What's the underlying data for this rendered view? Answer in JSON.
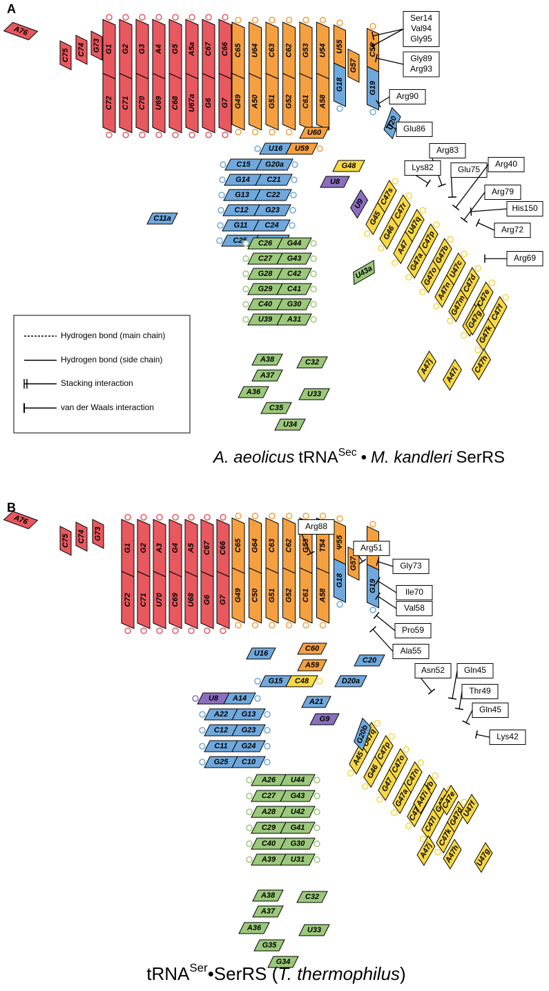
{
  "panels": [
    {
      "label": "A",
      "stems": [
        {
          "pairs": [
            [
              "C72",
              "G1"
            ],
            [
              "C71",
              "G2"
            ],
            [
              "C70",
              "G3"
            ],
            [
              "U69",
              "A4"
            ],
            [
              "C68",
              "G5"
            ],
            [
              "U67a",
              "A5a"
            ],
            [
              "G6",
              "C67"
            ],
            [
              "G7",
              "C66"
            ]
          ],
          "colors": [
            "#e8585f",
            "#e8585f"
          ]
        },
        {
          "pairs": [
            [
              "G49",
              "C65"
            ],
            [
              "A50",
              "U64"
            ],
            [
              "G51",
              "C63"
            ],
            [
              "G52",
              "C62"
            ],
            [
              "C61",
              "G53"
            ],
            [
              "A58",
              "U54"
            ]
          ],
          "colors": [
            "#f5a040",
            "#f5a040"
          ]
        },
        {
          "pairs": [
            [
              "G18",
              "U55"
            ]
          ],
          "colors": [
            "#6fa8dc",
            "#f5a040"
          ]
        },
        {
          "pairs": [
            [
              "G19",
              "C56"
            ]
          ],
          "colors": [
            "#6fa8dc",
            "#f5a040"
          ]
        },
        {
          "pairs": [
            [
              "U16",
              "U59"
            ]
          ],
          "colors": [
            "#6fa8dc",
            "#f5a040"
          ]
        },
        {
          "pairs": [
            [
              "C15",
              "G20a"
            ],
            [
              "G14",
              "C21"
            ],
            [
              "G13",
              "C22"
            ],
            [
              "C12",
              "G23"
            ],
            [
              "G11",
              "C24"
            ],
            [
              "C25",
              "G10"
            ]
          ],
          "colors": [
            "#6fa8dc",
            "#6fa8dc"
          ]
        },
        {
          "pairs": [
            [
              "G45",
              "C47s"
            ],
            [
              "G46",
              "C47r"
            ],
            [
              "A47",
              "U47q"
            ],
            [
              "G47a",
              "C47p"
            ],
            [
              "G47o",
              "G47b"
            ],
            [
              "A47n",
              "U47c"
            ],
            [
              "G47m",
              "C47d"
            ],
            [
              "G47l",
              "C47e"
            ],
            [
              "G47k",
              "C47f"
            ]
          ],
          "colors": [
            "#f7d842",
            "#f7d842"
          ]
        },
        {
          "pairs": [
            [
              "C26",
              "G44"
            ],
            [
              "C27",
              "G43"
            ],
            [
              "G28",
              "C42"
            ],
            [
              "G29",
              "C41"
            ],
            [
              "C40",
              "G30"
            ],
            [
              "U39",
              "A31"
            ]
          ],
          "colors": [
            "#9bc87a",
            "#9bc87a"
          ]
        }
      ],
      "singles": [
        {
          "text": "A76",
          "color": "#e8585f"
        },
        {
          "text": "C75",
          "color": "#e8585f"
        },
        {
          "text": "C74",
          "color": "#e8585f"
        },
        {
          "text": "G73",
          "color": "#e8585f"
        },
        {
          "text": "G57",
          "color": "#f5a040"
        },
        {
          "text": "U20",
          "color": "#6fa8dc"
        },
        {
          "text": "U60",
          "color": "#f5a040"
        },
        {
          "text": "G48",
          "color": "#f7d842"
        },
        {
          "text": "U8",
          "color": "#8b6fbf"
        },
        {
          "text": "U9",
          "color": "#8b6fbf"
        },
        {
          "text": "C11a",
          "color": "#6fa8dc"
        },
        {
          "text": "U43a",
          "color": "#9bc87a"
        },
        {
          "text": "G47g",
          "color": "#f7d842"
        },
        {
          "text": "A47j",
          "color": "#f7d842"
        },
        {
          "text": "A47i",
          "color": "#f7d842"
        },
        {
          "text": "C47h",
          "color": "#f7d842"
        },
        {
          "text": "A38",
          "color": "#9bc87a"
        },
        {
          "text": "C32",
          "color": "#9bc87a"
        },
        {
          "text": "A37",
          "color": "#9bc87a"
        },
        {
          "text": "A36",
          "color": "#9bc87a"
        },
        {
          "text": "U33",
          "color": "#9bc87a"
        },
        {
          "text": "C35",
          "color": "#9bc87a"
        },
        {
          "text": "U34",
          "color": "#9bc87a"
        }
      ],
      "residues": [
        [
          "Ser14",
          "Val94",
          "Gly95"
        ],
        [
          "Gly89",
          "Arg93"
        ],
        [
          "Arg90"
        ],
        [
          "Glu86"
        ],
        [
          "Arg83"
        ],
        [
          "Lys82"
        ],
        [
          "Glu75"
        ],
        [
          "Arg40"
        ],
        [
          "Arg79"
        ],
        [
          "His150"
        ],
        [
          "Arg72"
        ],
        [
          "Arg69"
        ]
      ],
      "caption": [
        "A. aeolicus",
        "tRNA",
        "Sec",
        "•",
        "M. kandleri",
        "SerRS"
      ]
    },
    {
      "label": "B",
      "stems": [
        {
          "pairs": [
            [
              "C72",
              "G1"
            ],
            [
              "C71",
              "G2"
            ],
            [
              "U70",
              "A3"
            ],
            [
              "C69",
              "G4"
            ],
            [
              "U68",
              "A5"
            ],
            [
              "G6",
              "C67"
            ],
            [
              "G7",
              "C66"
            ]
          ],
          "colors": [
            "#e8585f",
            "#e8585f"
          ]
        },
        {
          "pairs": [
            [
              "G49",
              "C65"
            ],
            [
              "C50",
              "G64"
            ],
            [
              "G51",
              "C63"
            ],
            [
              "G52",
              "C62"
            ],
            [
              "C61",
              "G53"
            ],
            [
              "A58",
              "T54"
            ]
          ],
          "colors": [
            "#f5a040",
            "#f5a040"
          ]
        },
        {
          "pairs": [
            [
              "G18",
              "Ψ55"
            ]
          ],
          "colors": [
            "#6fa8dc",
            "#f5a040"
          ]
        },
        {
          "pairs": [
            [
              "G19",
              "C56"
            ]
          ],
          "colors": [
            "#6fa8dc",
            "#f5a040"
          ]
        },
        {
          "pairs": [
            [
              "G15",
              "C48"
            ]
          ],
          "colors": [
            "#6fa8dc",
            "#f7d842"
          ]
        },
        {
          "pairs": [
            [
              "U8",
              "A14"
            ]
          ],
          "colors": [
            "#8b6fbf",
            "#6fa8dc"
          ]
        },
        {
          "pairs": [
            [
              "A22",
              "G13"
            ],
            [
              "C12",
              "G23"
            ],
            [
              "C11",
              "G24"
            ],
            [
              "G25",
              "C10"
            ]
          ],
          "colors": [
            "#6fa8dc",
            "#6fa8dc"
          ]
        },
        {
          "pairs": [
            [
              "A45",
              "U47q"
            ],
            [
              "G46",
              "C47p"
            ],
            [
              "G47",
              "C47o"
            ],
            [
              "G47a",
              "C47n"
            ],
            [
              "C47m",
              "G47b"
            ],
            [
              "C47l",
              "G47c"
            ],
            [
              "C47k",
              "G47d"
            ]
          ],
          "colors": [
            "#f7d842",
            "#f7d842"
          ]
        },
        {
          "pairs": [
            [
              "A26",
              "U44"
            ],
            [
              "C27",
              "G43"
            ],
            [
              "A28",
              "U42"
            ],
            [
              "C29",
              "G41"
            ],
            [
              "C40",
              "G30"
            ],
            [
              "A39",
              "U31"
            ]
          ],
          "colors": [
            "#9bc87a",
            "#9bc87a"
          ]
        }
      ],
      "singles": [
        {
          "text": "A76",
          "color": "#e8585f"
        },
        {
          "text": "C75",
          "color": "#e8585f"
        },
        {
          "text": "C74",
          "color": "#e8585f"
        },
        {
          "text": "G73",
          "color": "#e8585f"
        },
        {
          "text": "G57",
          "color": "#f5a040"
        },
        {
          "text": "U16",
          "color": "#6fa8dc"
        },
        {
          "text": "C60",
          "color": "#f5a040"
        },
        {
          "text": "A59",
          "color": "#f5a040"
        },
        {
          "text": "D20a",
          "color": "#6fa8dc"
        },
        {
          "text": "C20",
          "color": "#6fa8dc"
        },
        {
          "text": "A21",
          "color": "#6fa8dc"
        },
        {
          "text": "G9",
          "color": "#8b6fbf"
        },
        {
          "text": "G20b",
          "color": "#6fa8dc"
        },
        {
          "text": "A47i",
          "color": "#f7d842"
        },
        {
          "text": "C47e",
          "color": "#f7d842"
        },
        {
          "text": "U47f",
          "color": "#f7d842"
        },
        {
          "text": "A47j",
          "color": "#f7d842"
        },
        {
          "text": "A47h",
          "color": "#f7d842"
        },
        {
          "text": "U47g",
          "color": "#f7d842"
        },
        {
          "text": "A38",
          "color": "#9bc87a"
        },
        {
          "text": "C32",
          "color": "#9bc87a"
        },
        {
          "text": "A37",
          "color": "#9bc87a"
        },
        {
          "text": "A36",
          "color": "#9bc87a"
        },
        {
          "text": "U33",
          "color": "#9bc87a"
        },
        {
          "text": "G35",
          "color": "#9bc87a"
        },
        {
          "text": "G34",
          "color": "#9bc87a"
        }
      ],
      "residues": [
        [
          "Arg88"
        ],
        [
          "Arg51"
        ],
        [
          "Gly73"
        ],
        [
          "Ile70"
        ],
        [
          "Val58"
        ],
        [
          "Pro59"
        ],
        [
          "Ala55"
        ],
        [
          "Asn52"
        ],
        [
          "Gln45"
        ],
        [
          "Thr49"
        ],
        [
          "Gln45"
        ],
        [
          "Lys42"
        ]
      ],
      "caption": [
        "tRNA",
        "Ser",
        "•SerRS (",
        "T. thermophilus",
        ")"
      ]
    }
  ],
  "legend": [
    "Hydrogen bond (main chain)",
    "Hydrogen bond (side chain)",
    "Stacking interaction",
    "van der Waals interaction"
  ]
}
